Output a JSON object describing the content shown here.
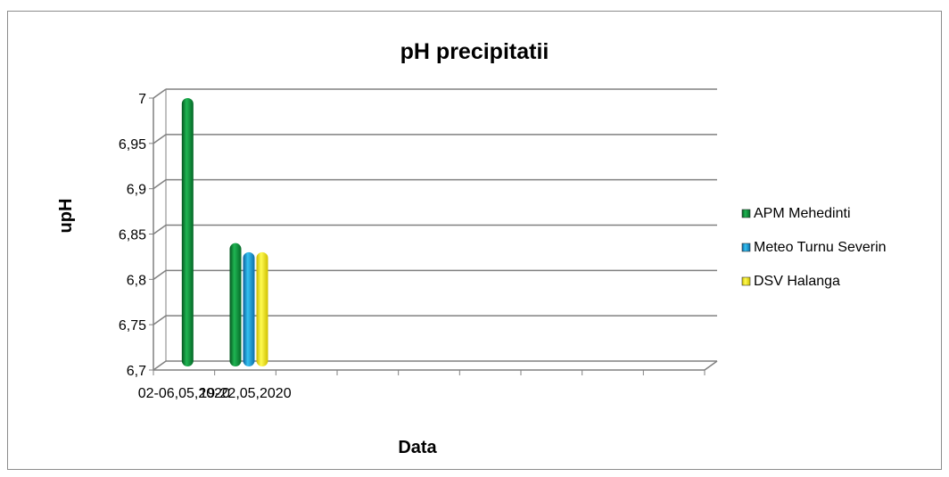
{
  "chart_data": {
    "type": "bar",
    "title": "pH precipitatii",
    "xlabel": "Data",
    "ylabel": "upH",
    "ylim": [
      6.7,
      7.0
    ],
    "yticks": [
      "6,7",
      "6,75",
      "6,8",
      "6,85",
      "6,9",
      "6,95",
      "7"
    ],
    "categories": [
      "02-06,05,2020",
      "19-22,05,2020",
      "",
      "",
      "",
      "",
      "",
      "",
      ""
    ],
    "series": [
      {
        "name": "APM Mehedinti",
        "color": "#0a8a3a",
        "values": [
          7.0,
          6.84,
          null,
          null,
          null,
          null,
          null,
          null,
          null
        ]
      },
      {
        "name": "Meteo Turnu Severin",
        "color": "#1a9fd8",
        "values": [
          null,
          6.83,
          null,
          null,
          null,
          null,
          null,
          null,
          null
        ]
      },
      {
        "name": "DSV Halanga",
        "color": "#f2e600",
        "values": [
          null,
          6.83,
          null,
          null,
          null,
          null,
          null,
          null,
          null
        ]
      }
    ],
    "grid": true,
    "legend": "right"
  }
}
